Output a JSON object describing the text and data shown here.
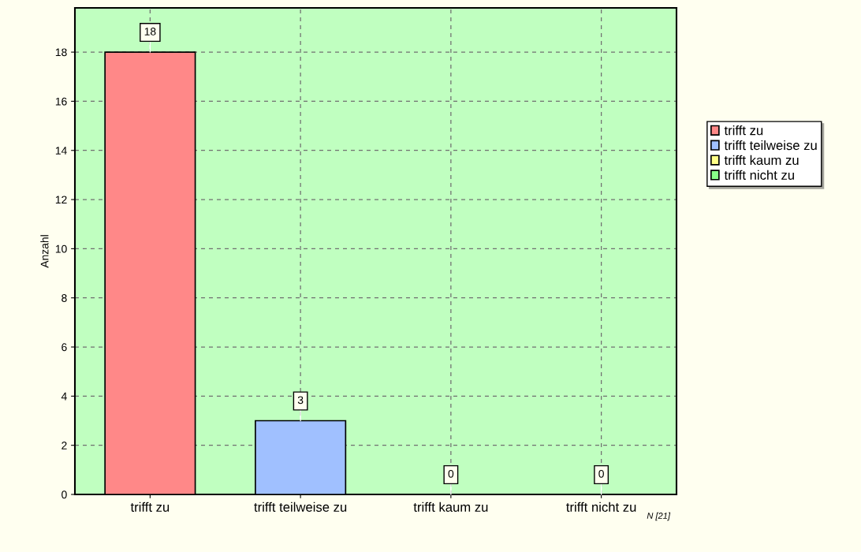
{
  "chart_data": {
    "type": "bar",
    "ylabel": "Anzahl",
    "categories": [
      "trifft zu",
      "trifft teilweise zu",
      "trifft kaum zu",
      "trifft nicht zu"
    ],
    "series": [
      {
        "name": "trifft zu",
        "color": "#ff8888",
        "values": [
          18,
          null,
          null,
          null
        ]
      },
      {
        "name": "trifft teilweise zu",
        "color": "#a0c0ff",
        "values": [
          null,
          3,
          null,
          null
        ]
      },
      {
        "name": "trifft kaum zu",
        "color": "#ffff88",
        "values": [
          null,
          null,
          0,
          null
        ]
      },
      {
        "name": "trifft nicht zu",
        "color": "#88ff88",
        "values": [
          null,
          null,
          null,
          0
        ]
      }
    ],
    "ylim": [
      0,
      19.8
    ],
    "yticks": [
      0,
      2,
      4,
      6,
      8,
      10,
      12,
      14,
      16,
      18
    ],
    "grid": true,
    "legend": "right",
    "data_labels": true,
    "annotations": [
      "N [21]"
    ]
  }
}
